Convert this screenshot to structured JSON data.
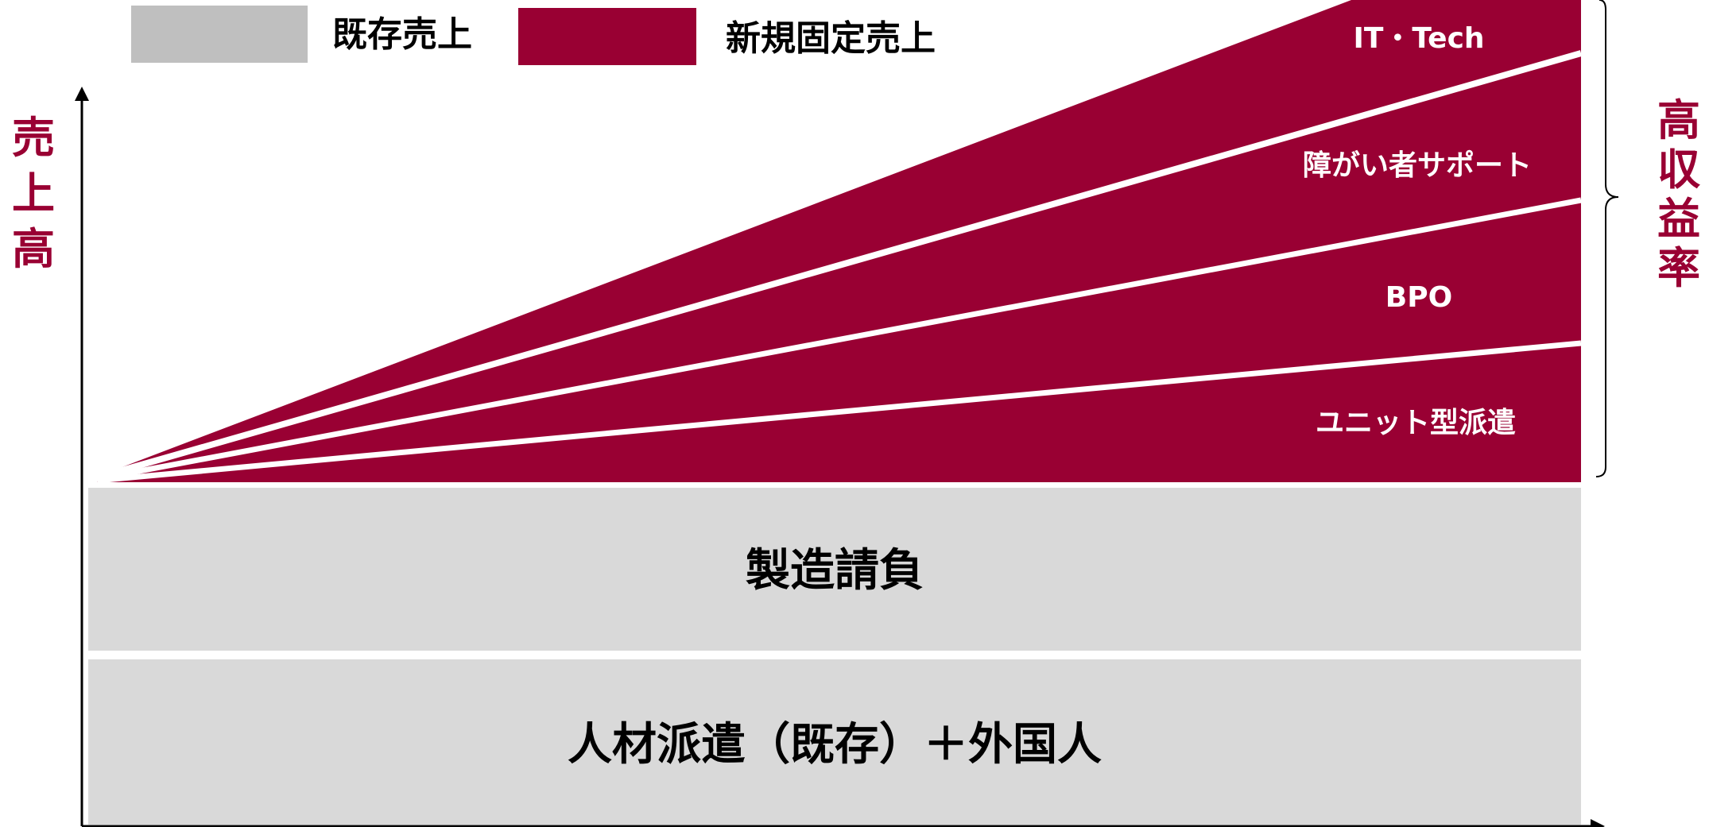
{
  "legend": {
    "existing_label": "既存売上",
    "new_label": "新規固定売上"
  },
  "axis": {
    "y_label_chars": [
      "売",
      "上",
      "高"
    ]
  },
  "side_label": {
    "chars": [
      "高",
      "収",
      "益",
      "率"
    ]
  },
  "bands": {
    "existing": [
      {
        "label": "製造請負"
      },
      {
        "label": "人材派遣（既存）＋外国人"
      }
    ],
    "new_fixed": [
      {
        "label": "IT・Tech"
      },
      {
        "label": "障がい者サポート"
      },
      {
        "label": "BPO"
      },
      {
        "label": "ユニット型派遣"
      }
    ]
  },
  "colors": {
    "new_fixed": "#990033",
    "existing": "#d9d9d9",
    "legend_existing": "#bfbfbf",
    "axis": "#000000",
    "accent_text": "#990033"
  }
}
